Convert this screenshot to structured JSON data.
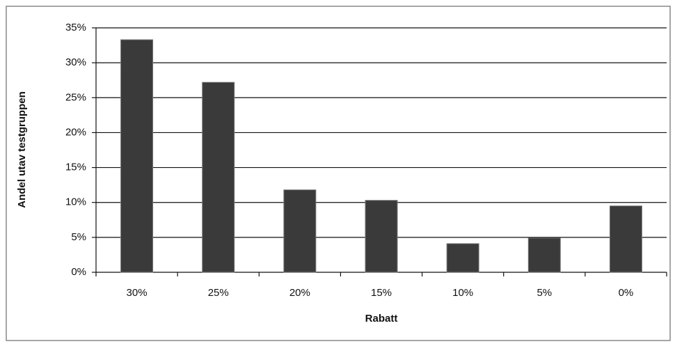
{
  "chart_data": {
    "type": "bar",
    "xlabel": "Rabatt",
    "ylabel": "Andel utav testgruppen",
    "categories": [
      "30%",
      "25%",
      "20%",
      "15%",
      "10%",
      "5%",
      "0%"
    ],
    "values": [
      33.3,
      27.2,
      11.8,
      10.3,
      4.1,
      4.9,
      9.5
    ],
    "color": "#3a3a3a",
    "ylim": [
      0,
      35
    ],
    "yticks": [
      {
        "value": 0,
        "label": "0%"
      },
      {
        "value": 5,
        "label": "5%"
      },
      {
        "value": 10,
        "label": "10%"
      },
      {
        "value": 15,
        "label": "15%"
      },
      {
        "value": 20,
        "label": "20%"
      },
      {
        "value": 25,
        "label": "25%"
      },
      {
        "value": 30,
        "label": "30%"
      },
      {
        "value": 35,
        "label": "35%"
      }
    ],
    "grid": true
  }
}
